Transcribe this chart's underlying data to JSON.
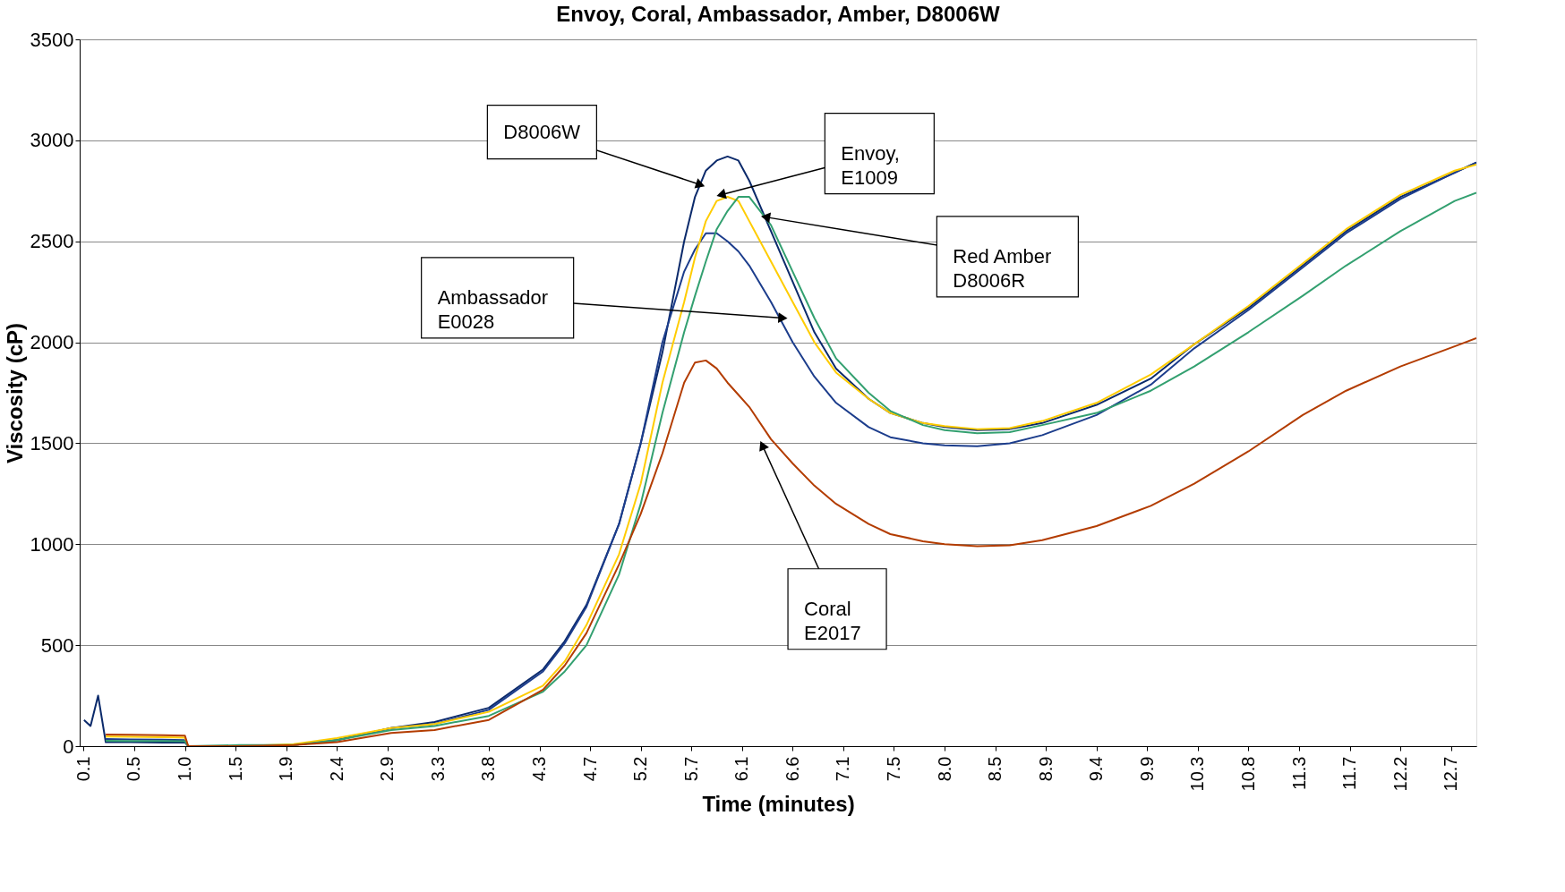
{
  "chart_data": {
    "type": "line",
    "title": "Envoy, Coral, Ambassador, Amber, D8006W",
    "xlabel": "Time (minutes)",
    "ylabel": "Viscosity (cP)",
    "x": [
      0.07,
      0.13,
      0.2,
      0.27,
      0.5,
      0.8,
      1.0,
      1.03,
      1.5,
      2.0,
      2.4,
      2.9,
      3.3,
      3.8,
      4.3,
      4.5,
      4.7,
      5.0,
      5.2,
      5.4,
      5.6,
      5.7,
      5.8,
      5.9,
      6.0,
      6.1,
      6.2,
      6.4,
      6.6,
      6.8,
      7.0,
      7.3,
      7.5,
      7.8,
      8.0,
      8.3,
      8.6,
      8.9,
      9.4,
      9.9,
      10.3,
      10.8,
      11.3,
      11.7,
      12.2,
      12.7,
      12.9
    ],
    "series": [
      {
        "color": "#0b2a6b",
        "values": [
          130,
          100,
          250,
          20,
          20,
          18,
          18,
          0,
          0,
          5,
          30,
          90,
          120,
          190,
          380,
          520,
          700,
          1100,
          1500,
          1950,
          2500,
          2720,
          2850,
          2900,
          2920,
          2900,
          2800,
          2550,
          2300,
          2050,
          1870,
          1720,
          1650,
          1600,
          1580,
          1565,
          1570,
          1600,
          1690,
          1820,
          1990,
          2170,
          2380,
          2550,
          2720,
          2840,
          2890
        ]
      },
      {
        "color": "#1c3d8c",
        "values": [
          null,
          null,
          null,
          35,
          33,
          32,
          30,
          0,
          0,
          5,
          30,
          90,
          110,
          180,
          370,
          510,
          690,
          1100,
          1500,
          2000,
          2350,
          2460,
          2540,
          2540,
          2500,
          2450,
          2380,
          2200,
          2000,
          1830,
          1700,
          1580,
          1530,
          1500,
          1490,
          1485,
          1500,
          1540,
          1640,
          1790,
          1970,
          2160,
          2370,
          2540,
          2710,
          2840,
          2890
        ]
      },
      {
        "color": "#ffcc00",
        "values": [
          null,
          null,
          null,
          48,
          46,
          44,
          42,
          0,
          0,
          10,
          40,
          90,
          110,
          170,
          300,
          420,
          600,
          950,
          1300,
          1800,
          2200,
          2420,
          2600,
          2700,
          2720,
          2700,
          2600,
          2400,
          2200,
          2000,
          1850,
          1720,
          1650,
          1600,
          1585,
          1570,
          1575,
          1610,
          1700,
          1840,
          1990,
          2180,
          2390,
          2560,
          2730,
          2850,
          2880
        ]
      },
      {
        "color": "#33a070",
        "values": [
          null,
          null,
          null,
          27,
          26,
          25,
          24,
          0,
          5,
          5,
          30,
          80,
          100,
          150,
          270,
          370,
          500,
          850,
          1200,
          1650,
          2050,
          2230,
          2400,
          2560,
          2650,
          2720,
          2720,
          2580,
          2350,
          2120,
          1920,
          1750,
          1660,
          1590,
          1565,
          1550,
          1555,
          1590,
          1650,
          1760,
          1880,
          2050,
          2230,
          2380,
          2550,
          2700,
          2740
        ]
      },
      {
        "color": "#b33c00",
        "values": [
          null,
          null,
          null,
          58,
          56,
          54,
          52,
          0,
          0,
          5,
          20,
          65,
          80,
          130,
          280,
          400,
          560,
          900,
          1150,
          1450,
          1800,
          1900,
          1910,
          1870,
          1800,
          1740,
          1680,
          1520,
          1400,
          1290,
          1200,
          1100,
          1050,
          1015,
          1000,
          990,
          995,
          1020,
          1090,
          1190,
          1300,
          1460,
          1640,
          1760,
          1880,
          1980,
          2020
        ]
      }
    ],
    "xlim": [
      0.03,
      12.9
    ],
    "ylim": [
      0,
      3500
    ],
    "yticks": [
      0,
      500,
      1000,
      1500,
      2000,
      2500,
      3000,
      3500
    ],
    "xticks": [
      {
        "value": 0.067,
        "label": "0.1"
      },
      {
        "value": 0.533,
        "label": "0.5"
      },
      {
        "value": 1.0,
        "label": "1.0"
      },
      {
        "value": 1.467,
        "label": "1.5"
      },
      {
        "value": 1.933,
        "label": "1.9"
      },
      {
        "value": 2.4,
        "label": "2.4"
      },
      {
        "value": 2.867,
        "label": "2.9"
      },
      {
        "value": 3.333,
        "label": "3.3"
      },
      {
        "value": 3.8,
        "label": "3.8"
      },
      {
        "value": 4.267,
        "label": "4.3"
      },
      {
        "value": 4.733,
        "label": "4.7"
      },
      {
        "value": 5.2,
        "label": "5.2"
      },
      {
        "value": 5.667,
        "label": "5.7"
      },
      {
        "value": 6.133,
        "label": "6.1"
      },
      {
        "value": 6.6,
        "label": "6.6"
      },
      {
        "value": 7.067,
        "label": "7.1"
      },
      {
        "value": 7.533,
        "label": "7.5"
      },
      {
        "value": 8.0,
        "label": "8.0"
      },
      {
        "value": 8.467,
        "label": "8.5"
      },
      {
        "value": 8.933,
        "label": "8.9"
      },
      {
        "value": 9.4,
        "label": "9.4"
      },
      {
        "value": 9.867,
        "label": "9.9"
      },
      {
        "value": 10.333,
        "label": "10.3"
      },
      {
        "value": 10.8,
        "label": "10.8"
      },
      {
        "value": 11.267,
        "label": "11.3"
      },
      {
        "value": 11.733,
        "label": "11.7"
      },
      {
        "value": 12.2,
        "label": "12.2"
      },
      {
        "value": 12.667,
        "label": "12.7"
      }
    ],
    "grid": "y",
    "marker": "none",
    "line_style": "solid",
    "annotations": [
      {
        "text": "D8006W",
        "x": 5.75,
        "y": 2780
      },
      {
        "text": "Envoy,\nE1009",
        "x": 5.94,
        "y": 2730
      },
      {
        "text": "Red Amber\nD8006R",
        "x": 6.35,
        "y": 2620
      },
      {
        "text": "Ambassador\nE0028",
        "x": 6.51,
        "y": 2120
      },
      {
        "text": "Coral\nE2017",
        "x": 6.32,
        "y": 1490
      }
    ]
  }
}
